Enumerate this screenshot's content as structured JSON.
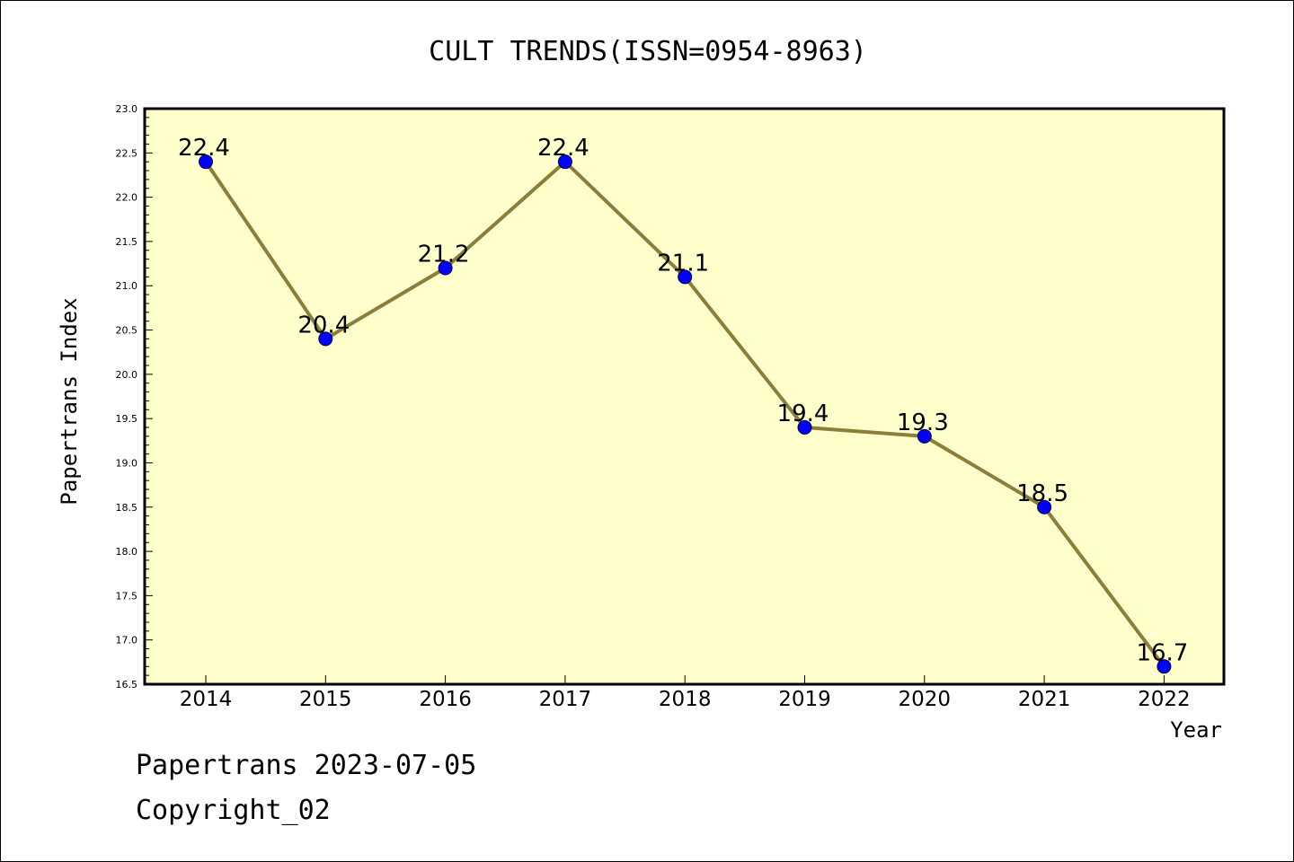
{
  "chart_data": {
    "type": "line",
    "title": "CULT TRENDS(ISSN=0954-8963)",
    "xlabel": "Year",
    "ylabel": "Papertrans Index",
    "categories": [
      "2014",
      "2015",
      "2016",
      "2017",
      "2018",
      "2019",
      "2020",
      "2021",
      "2022"
    ],
    "values": [
      22.4,
      20.4,
      21.2,
      22.4,
      21.1,
      19.4,
      19.3,
      18.5,
      16.7
    ],
    "data_labels": [
      "22.4",
      "20.4",
      "21.2",
      "22.4",
      "21.1",
      "19.4",
      "19.3",
      "18.5",
      "16.7"
    ],
    "ylim": [
      16.5,
      23.0
    ],
    "yticks": [
      "16.5",
      "17.0",
      "17.5",
      "18.0",
      "18.5",
      "19.0",
      "19.5",
      "20.0",
      "20.5",
      "21.0",
      "21.5",
      "22.0",
      "22.5",
      "23.0"
    ],
    "grid": false,
    "colors": {
      "plot_background": "#ffffcc",
      "line": "#8b7d3a",
      "marker": "#0000ff"
    }
  },
  "footer": {
    "line1": "Papertrans 2023-07-05",
    "line2": "Copyright_02"
  }
}
